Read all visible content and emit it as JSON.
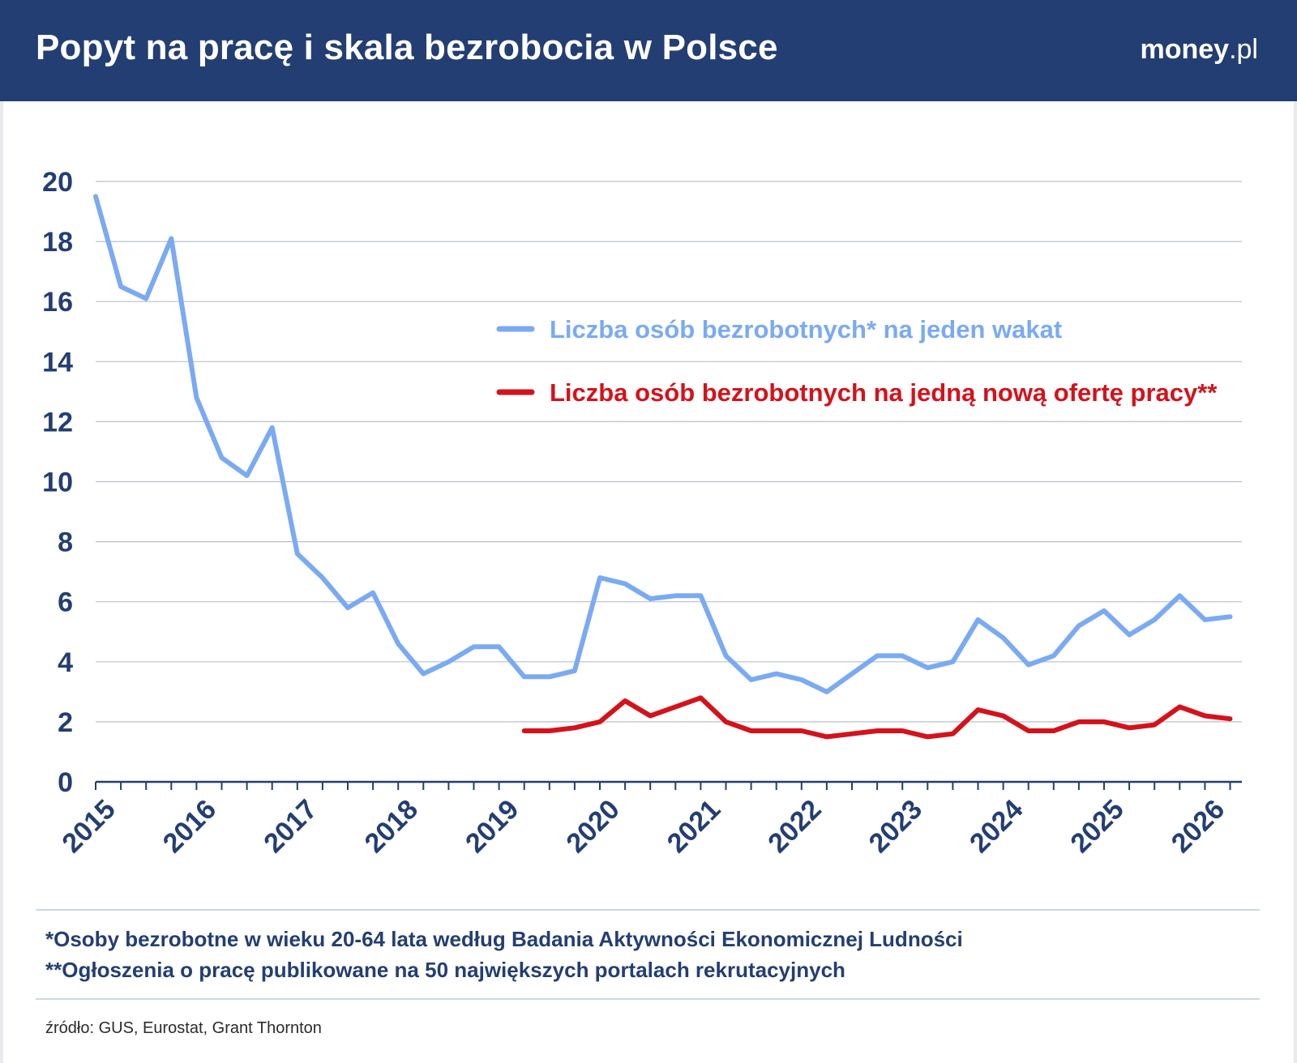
{
  "header": {
    "title": "Popyt na pracę i skala bezrobocia w Polsce",
    "logo_bold": "money",
    "logo_light": ".pl",
    "background_color": "#233e72"
  },
  "chart_data": {
    "type": "line",
    "title": "Popyt na pracę i skala bezrobocia w Polsce",
    "xlabel": "",
    "ylabel": "",
    "ylim": [
      0,
      20
    ],
    "y_ticks": [
      0,
      2,
      4,
      6,
      8,
      10,
      12,
      14,
      16,
      18,
      20
    ],
    "x_tick_labels": [
      "2015",
      "2016",
      "2017",
      "2018",
      "2019",
      "2020",
      "2021",
      "2022",
      "2023",
      "2024",
      "2025",
      "2026"
    ],
    "x_period": "quarterly",
    "x_start": "2015 Q1",
    "grid": true,
    "legend_position": "upper-center",
    "series": [
      {
        "name": "Liczba osób bezrobotnych* na jeden wakat",
        "color": "#7aaaf2",
        "values": [
          19.5,
          16.5,
          16.1,
          18.1,
          12.8,
          10.8,
          10.2,
          11.8,
          7.6,
          6.8,
          5.8,
          6.3,
          4.6,
          3.6,
          4.0,
          4.5,
          4.5,
          3.5,
          3.5,
          3.7,
          6.8,
          6.6,
          6.1,
          6.2,
          6.2,
          4.2,
          3.4,
          3.6,
          3.4,
          3.0,
          3.6,
          4.2,
          4.2,
          3.8,
          4.0,
          5.4,
          4.8,
          3.9,
          4.2,
          5.2,
          5.7,
          4.9,
          5.4,
          6.2,
          5.4,
          5.5
        ]
      },
      {
        "name": "Liczba osób bezrobotnych na jedną nową ofertę pracy**",
        "color": "#d4121b",
        "values": [
          null,
          null,
          null,
          null,
          null,
          null,
          null,
          null,
          null,
          null,
          null,
          null,
          null,
          null,
          null,
          null,
          null,
          1.7,
          1.7,
          1.8,
          2.0,
          2.7,
          2.2,
          2.5,
          2.8,
          2.0,
          1.7,
          1.7,
          1.7,
          1.5,
          1.6,
          1.7,
          1.7,
          1.5,
          1.6,
          2.4,
          2.2,
          1.7,
          1.7,
          2.0,
          2.0,
          1.8,
          1.9,
          2.5,
          2.2,
          2.1
        ]
      }
    ]
  },
  "footnotes": [
    "*Osoby bezrobotne w wieku 20-64 lata według Badania Aktywności Ekonomicznej Ludności",
    "**Ogłoszenia o pracę publikowane na 50 największych portalach rekrutacyjnych"
  ],
  "source": "źródło: GUS, Eurostat, Grant Thornton"
}
